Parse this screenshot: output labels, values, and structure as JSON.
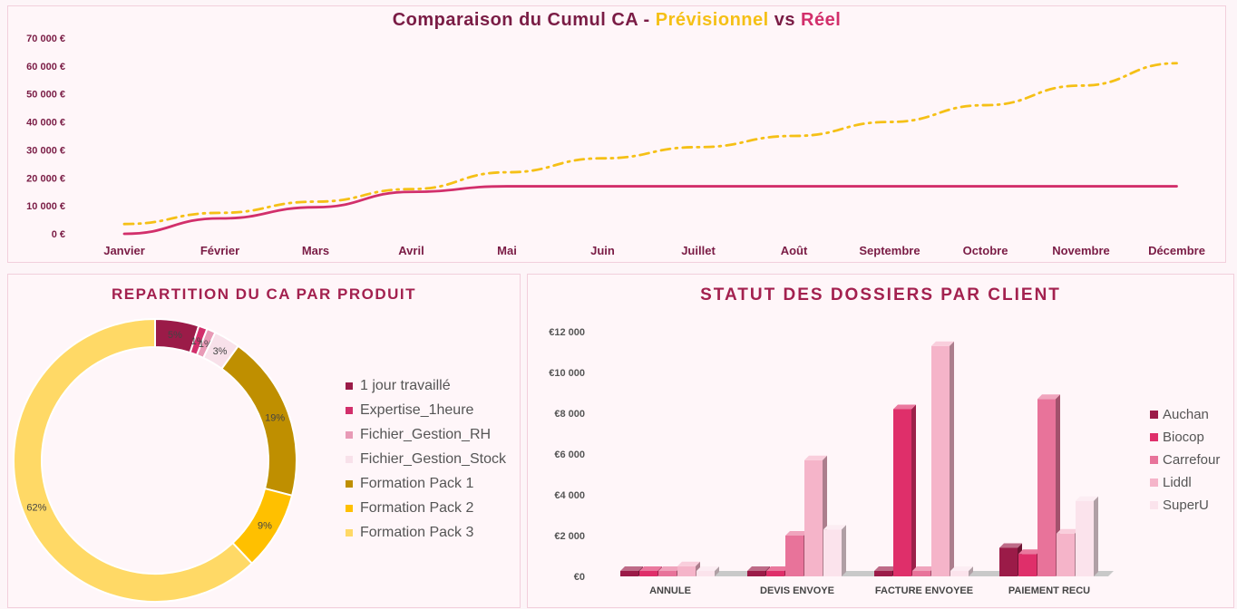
{
  "colors": {
    "previsionnel": "#f5c016",
    "reel": "#d22f6b",
    "axis_text": "#7a1c45",
    "donut": [
      "#9b1b48",
      "#d22f6b",
      "#e89ab6",
      "#f8e1ea",
      "#bf8f00",
      "#ffc000",
      "#ffd966"
    ],
    "clients": [
      "#9b1b48",
      "#df2f6a",
      "#e8739a",
      "#f5b4c9",
      "#fbe3ec"
    ]
  },
  "chart_data": [
    {
      "type": "line",
      "title_parts": [
        "Comparaison du Cumul CA - ",
        "Prévisionnel",
        " vs ",
        "Réel"
      ],
      "categories": [
        "Janvier",
        "Février",
        "Mars",
        "Avril",
        "Mai",
        "Juin",
        "Juillet",
        "Août",
        "Septembre",
        "Octobre",
        "Novembre",
        "Décembre"
      ],
      "y_ticks": [
        "0 €",
        "10 000 €",
        "20 000 €",
        "30 000 €",
        "40 000 €",
        "50 000 €",
        "60 000 €",
        "70 000 €"
      ],
      "ylim": [
        0,
        70000
      ],
      "series": [
        {
          "values": [
            3500,
            7500,
            11500,
            16000,
            22000,
            27000,
            31000,
            35000,
            40000,
            46000,
            53000,
            61000
          ],
          "style": "dash-dot"
        },
        {
          "values": [
            0,
            5500,
            9500,
            15000,
            17000,
            17000,
            17000,
            17000,
            17000,
            17000,
            17000,
            17000
          ],
          "style": "solid"
        }
      ]
    },
    {
      "type": "pie",
      "title": "REPARTITION DU CA PAR PRODUIT",
      "legend": "right",
      "labels": [
        "1 jour travaillé",
        "Expertise_1heure",
        "Fichier_Gestion_RH",
        "Fichier_Gestion_Stock",
        "Formation Pack 1",
        "Formation Pack 2",
        "Formation Pack 3"
      ],
      "values": [
        5,
        1,
        1,
        3,
        19,
        9,
        62
      ],
      "data_labels": [
        "5%",
        "1%",
        "1%",
        "3%",
        "19%",
        "9%",
        "62%"
      ]
    },
    {
      "type": "bar",
      "title": "STATUT DES DOSSIERS PAR CLIENT",
      "legend": "right",
      "categories": [
        "ANNULE",
        "DEVIS ENVOYE",
        "FACTURE ENVOYEE",
        "PAIEMENT RECU"
      ],
      "y_ticks": [
        "€0",
        "€2 000",
        "€4 000",
        "€6 000",
        "€8 000",
        "€10 000",
        "€12 000"
      ],
      "ylim": [
        0,
        12000
      ],
      "series": [
        {
          "name": "Auchan",
          "values": [
            0,
            0,
            0,
            1400
          ]
        },
        {
          "name": "Biocop",
          "values": [
            0,
            0,
            8200,
            1100
          ]
        },
        {
          "name": "Carrefour",
          "values": [
            0,
            2000,
            0,
            8700
          ]
        },
        {
          "name": "Liddl",
          "values": [
            500,
            5700,
            11300,
            2100
          ]
        },
        {
          "name": "SuperU",
          "values": [
            0,
            2300,
            0,
            3700
          ]
        }
      ]
    }
  ]
}
